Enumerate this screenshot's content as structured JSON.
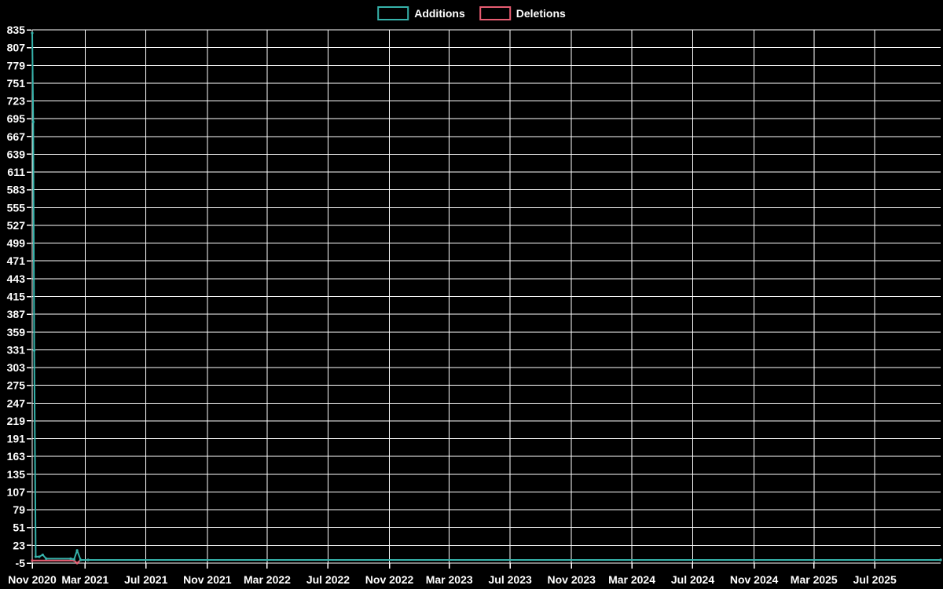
{
  "legend": {
    "additions_label": "Additions",
    "deletions_label": "Deletions"
  },
  "colors": {
    "background": "#000000",
    "grid": "#ffffff",
    "text": "#ffffff",
    "additions": "#36b3ab",
    "deletions": "#e85d72"
  },
  "chart_data": {
    "type": "line",
    "title": "",
    "legend_position": "top",
    "grid": true,
    "background_color": "#000000",
    "grid_color": "#ffffff",
    "text_color": "#ffffff",
    "x_domain": [
      "2020-11-15",
      "2025-11-10"
    ],
    "y_axis": {
      "min": -5,
      "max": 835,
      "tick_step": 28,
      "ticks": [
        835,
        807,
        779,
        751,
        723,
        695,
        667,
        639,
        611,
        583,
        555,
        527,
        499,
        471,
        443,
        415,
        387,
        359,
        331,
        303,
        275,
        247,
        219,
        191,
        163,
        135,
        107,
        79,
        51,
        23,
        -5
      ]
    },
    "x_ticks": [
      {
        "label": "Nov 2020",
        "date": "2020-11-15"
      },
      {
        "label": "Mar 2021",
        "date": "2021-03-01"
      },
      {
        "label": "Jul 2021",
        "date": "2021-07-01"
      },
      {
        "label": "Nov 2021",
        "date": "2021-11-01"
      },
      {
        "label": "Mar 2022",
        "date": "2022-03-01"
      },
      {
        "label": "Jul 2022",
        "date": "2022-07-01"
      },
      {
        "label": "Nov 2022",
        "date": "2022-11-01"
      },
      {
        "label": "Mar 2023",
        "date": "2023-03-01"
      },
      {
        "label": "Jul 2023",
        "date": "2023-07-01"
      },
      {
        "label": "Nov 2023",
        "date": "2023-11-01"
      },
      {
        "label": "Mar 2024",
        "date": "2024-03-01"
      },
      {
        "label": "Jul 2024",
        "date": "2024-07-01"
      },
      {
        "label": "Nov 2024",
        "date": "2024-11-01"
      },
      {
        "label": "Mar 2025",
        "date": "2025-03-01"
      },
      {
        "label": "Jul 2025",
        "date": "2025-07-01"
      }
    ],
    "series": [
      {
        "name": "Additions",
        "color": "#36b3ab",
        "points": [
          [
            "2020-11-15",
            830
          ],
          [
            "2020-11-17",
            690
          ],
          [
            "2020-11-19",
            330
          ],
          [
            "2020-11-22",
            5
          ],
          [
            "2020-11-29",
            5
          ],
          [
            "2020-12-06",
            8
          ],
          [
            "2020-12-13",
            2
          ],
          [
            "2021-01-31",
            2
          ],
          [
            "2021-02-07",
            1
          ],
          [
            "2021-02-13",
            15
          ],
          [
            "2021-02-20",
            0
          ],
          [
            "2021-03-07",
            0
          ],
          [
            "2025-11-10",
            0
          ]
        ]
      },
      {
        "name": "Deletions",
        "color": "#e85d72",
        "points": [
          [
            "2020-11-15",
            -1
          ],
          [
            "2021-02-07",
            -1
          ],
          [
            "2021-02-13",
            -5
          ],
          [
            "2021-02-20",
            0
          ],
          [
            "2021-03-07",
            0
          ],
          [
            "2025-11-10",
            0
          ]
        ]
      }
    ]
  }
}
